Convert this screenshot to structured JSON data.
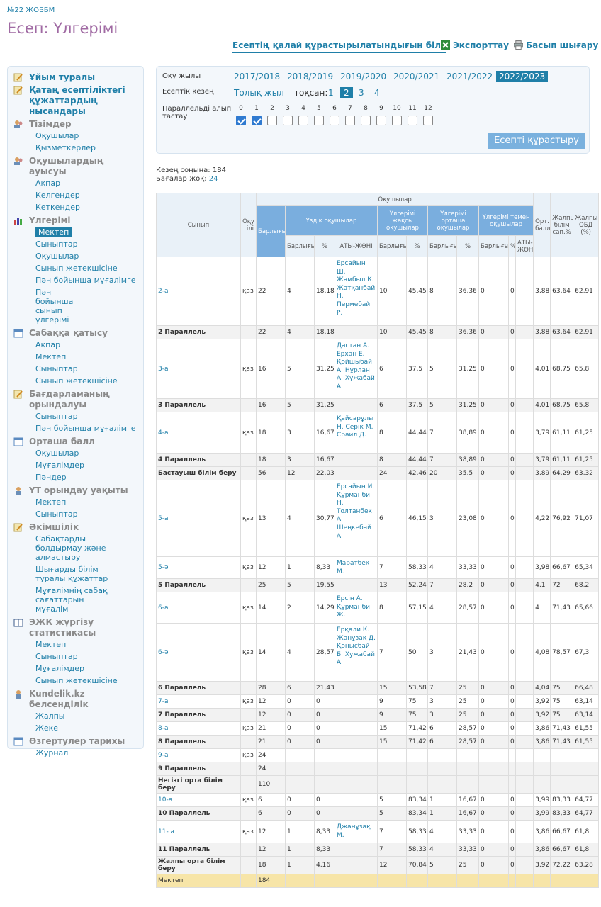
{
  "header": {
    "school": "№22 ЖОББМ",
    "title": "Есеп: Үлгерімі"
  },
  "actions": {
    "howto": "Есептің қалай құрастырылатындығын білу",
    "export": "Экспорттау",
    "print": "Басып шығару"
  },
  "sidebar": {
    "s1": "Ұйым туралы",
    "s2": "Қатаң есептіліктегі құжаттардың нысандары",
    "s3": "Тізімдер",
    "s3i": [
      "Оқушылар",
      "Қызметкерлер"
    ],
    "s4": "Оқушылардың ауысуы",
    "s4i": [
      "Ақпар",
      "Келгендер",
      "Кеткендер"
    ],
    "s5": "Үлгерімі",
    "s5i": [
      "Мектеп",
      "Сыныптар",
      "Оқушылар",
      "Сынып жетекшісіне",
      "Пән бойынша мұғалімге",
      "Пән бойынша сынып үлгерімі"
    ],
    "s6": "Сабаққа қатысу",
    "s6i": [
      "Ақпар",
      "Мектеп",
      "Сыныптар",
      "Сынып жетекшісіне"
    ],
    "s7": "Бағдарламаның орындалуы",
    "s7i": [
      "Сыныптар",
      "Пән бойынша мұғалімге"
    ],
    "s8": "Орташа балл",
    "s8i": [
      "Оқушылар",
      "Мұғалімдер",
      "Пәндер"
    ],
    "s9": "ҮТ орындау уақыты",
    "s9i": [
      "Мектеп",
      "Сыныптар"
    ],
    "s10": "Әкімшілік",
    "s10i": [
      "Сабақтарды болдырмау және алмастыру",
      "Шығарды білім туралы құжаттар",
      "Мұғалімнің сабақ сағаттарын мұғалім"
    ],
    "s11": "ЭЖК жүргізу статистикасы",
    "s11i": [
      "Мектеп",
      "Сыныптар",
      "Мұғалімдер",
      "Сынып жетекшісіне"
    ],
    "s12": "Kundelik.kz белсенділік",
    "s12i": [
      "Жалпы",
      "Жеке"
    ],
    "s13": "Өзгертулер тарихы",
    "s13i": [
      "Журнал"
    ]
  },
  "filter": {
    "year_label": "Оқу жылы",
    "years": [
      "2017/2018",
      "2018/2019",
      "2019/2020",
      "2020/2021",
      "2021/2022",
      "2022/2023"
    ],
    "period_label": "Есептік кезең",
    "full_year": "Толық жыл",
    "quarter_label": "тоқсан:",
    "quarters": [
      "1",
      "2",
      "3",
      "4"
    ],
    "parallel_label": "Параллельді алып тастау",
    "parallels": [
      "0",
      "1",
      "2",
      "3",
      "4",
      "5",
      "6",
      "7",
      "8",
      "9",
      "10",
      "11",
      "12"
    ],
    "build": "Есепті құрастыру"
  },
  "meta": {
    "end_label": "Кезең соңына:",
    "end_value": "184",
    "nogrades_label": "Бағалар жоқ:",
    "nogrades_value": "24"
  },
  "table": {
    "h": {
      "students": "Оқушылар",
      "class": "Сынып",
      "lang": "Оқу тілі",
      "total": "Барлығы",
      "excellent": "Үздік оқушылар",
      "good": "Үлгерімі жақсы оқушылар",
      "avg": "Үлгерімі орташа оқушылар",
      "low": "Үлгерімі төмен оқушылар",
      "ort": "Орт. балл",
      "quality": "Жалпы білім сап.%",
      "obd": "Жалпы ОБД (%)",
      "count": "Барлығы",
      "pct": "%",
      "names": "АТЫ-ЖӨНІ"
    },
    "rows": [
      [
        "c",
        "2-а",
        "қаз",
        "22",
        "4",
        "18,18",
        "Ерсайын Ш. Жамбыл К. Жатқанбай Н. Пермебай Р.",
        "10",
        "45,45",
        "8",
        "36,36",
        "0",
        "0",
        "",
        "3,88",
        "63,64",
        "62,91"
      ],
      [
        "p",
        "2 Параллель",
        "",
        "22",
        "4",
        "18,18",
        "",
        "10",
        "45,45",
        "8",
        "36,36",
        "0",
        "0",
        "",
        "3,88",
        "63,64",
        "62,91"
      ],
      [
        "c",
        "3-а",
        "қаз",
        "16",
        "5",
        "31,25",
        "Дастан А. Ерхан Е. Қойшыбай А. Нұрлан А. Хужабай А.",
        "6",
        "37,5",
        "5",
        "31,25",
        "0",
        "0",
        "",
        "4,01",
        "68,75",
        "65,8"
      ],
      [
        "p",
        "3 Параллель",
        "",
        "16",
        "5",
        "31,25",
        "",
        "6",
        "37,5",
        "5",
        "31,25",
        "0",
        "0",
        "",
        "4,01",
        "68,75",
        "65,8"
      ],
      [
        "c",
        "4-а",
        "қаз",
        "18",
        "3",
        "16,67",
        "Қайсарұлы Н. Серік М. Сраил Д.",
        "8",
        "44,44",
        "7",
        "38,89",
        "0",
        "0",
        "",
        "3,79",
        "61,11",
        "61,25"
      ],
      [
        "p",
        "4 Параллель",
        "",
        "18",
        "3",
        "16,67",
        "",
        "8",
        "44,44",
        "7",
        "38,89",
        "0",
        "0",
        "",
        "3,79",
        "61,11",
        "61,25"
      ],
      [
        "p",
        "Бастауыш білім беру",
        "",
        "56",
        "12",
        "22,03",
        "",
        "24",
        "42,46",
        "20",
        "35,5",
        "0",
        "0",
        "",
        "3,89",
        "64,29",
        "63,32"
      ],
      [
        "c",
        "5-а",
        "қаз",
        "13",
        "4",
        "30,77",
        "Ерсайын И. Құрманби Н. Толтанбек А. Шеңкебай А.",
        "6",
        "46,15",
        "3",
        "23,08",
        "0",
        "0",
        "",
        "4,22",
        "76,92",
        "71,07"
      ],
      [
        "c",
        "5-ә",
        "қаз",
        "12",
        "1",
        "8,33",
        "Маратбек М.",
        "7",
        "58,33",
        "4",
        "33,33",
        "0",
        "0",
        "",
        "3,98",
        "66,67",
        "65,34"
      ],
      [
        "p",
        "5 Параллель",
        "",
        "25",
        "5",
        "19,55",
        "",
        "13",
        "52,24",
        "7",
        "28,2",
        "0",
        "0",
        "",
        "4,1",
        "72",
        "68,2"
      ],
      [
        "c",
        "6-а",
        "қаз",
        "14",
        "2",
        "14,29",
        "Ерсін А. Құрманби Ж.",
        "8",
        "57,15",
        "4",
        "28,57",
        "0",
        "0",
        "",
        "4",
        "71,43",
        "65,66"
      ],
      [
        "c",
        "6-ә",
        "қаз",
        "14",
        "4",
        "28,57",
        "Ерқали К. Жанұзақ Д. Қонысбай Б. Хужабай А.",
        "7",
        "50",
        "3",
        "21,43",
        "0",
        "0",
        "",
        "4,08",
        "78,57",
        "67,3"
      ],
      [
        "p",
        "6 Параллель",
        "",
        "28",
        "6",
        "21,43",
        "",
        "15",
        "53,58",
        "7",
        "25",
        "0",
        "0",
        "",
        "4,04",
        "75",
        "66,48"
      ],
      [
        "c",
        "7-а",
        "қаз",
        "12",
        "0",
        "0",
        "",
        "9",
        "75",
        "3",
        "25",
        "0",
        "0",
        "",
        "3,92",
        "75",
        "63,14"
      ],
      [
        "p",
        "7 Параллель",
        "",
        "12",
        "0",
        "0",
        "",
        "9",
        "75",
        "3",
        "25",
        "0",
        "0",
        "",
        "3,92",
        "75",
        "63,14"
      ],
      [
        "c",
        "8-а",
        "қаз",
        "21",
        "0",
        "0",
        "",
        "15",
        "71,42",
        "6",
        "28,57",
        "0",
        "0",
        "",
        "3,86",
        "71,43",
        "61,55"
      ],
      [
        "p",
        "8 Параллель",
        "",
        "21",
        "0",
        "0",
        "",
        "15",
        "71,42",
        "6",
        "28,57",
        "0",
        "0",
        "",
        "3,86",
        "71,43",
        "61,55"
      ],
      [
        "c",
        "9-а",
        "қаз",
        "24",
        "",
        "",
        "",
        "",
        "",
        "",
        "",
        "",
        "",
        "",
        "",
        "",
        ""
      ],
      [
        "p",
        "9 Параллель",
        "",
        "24",
        "",
        "",
        "",
        "",
        "",
        "",
        "",
        "",
        "",
        "",
        "",
        "",
        ""
      ],
      [
        "p",
        "Негізгі орта білім беру",
        "",
        "110",
        "",
        "",
        "",
        "",
        "",
        "",
        "",
        "",
        "",
        "",
        "",
        "",
        ""
      ],
      [
        "c",
        "10-а",
        "қаз",
        "6",
        "0",
        "0",
        "",
        "5",
        "83,34",
        "1",
        "16,67",
        "0",
        "0",
        "",
        "3,99",
        "83,33",
        "64,77"
      ],
      [
        "p",
        "10 Параллель",
        "",
        "6",
        "0",
        "0",
        "",
        "5",
        "83,34",
        "1",
        "16,67",
        "0",
        "0",
        "",
        "3,99",
        "83,33",
        "64,77"
      ],
      [
        "c",
        "11- а",
        "қаз",
        "12",
        "1",
        "8,33",
        "Джанұзақ М.",
        "7",
        "58,33",
        "4",
        "33,33",
        "0",
        "0",
        "",
        "3,86",
        "66,67",
        "61,8"
      ],
      [
        "p",
        "11 Параллель",
        "",
        "12",
        "1",
        "8,33",
        "",
        "7",
        "58,33",
        "4",
        "33,33",
        "0",
        "0",
        "",
        "3,86",
        "66,67",
        "61,8"
      ],
      [
        "p",
        "Жалпы орта білім беру",
        "",
        "18",
        "1",
        "4,16",
        "",
        "12",
        "70,84",
        "5",
        "25",
        "0",
        "0",
        "",
        "3,92",
        "72,22",
        "63,28"
      ],
      [
        "t",
        "Мектеп",
        "",
        "184",
        "",
        "",
        "",
        "",
        "",
        "",
        "",
        "",
        "",
        "",
        "",
        "",
        ""
      ]
    ]
  }
}
